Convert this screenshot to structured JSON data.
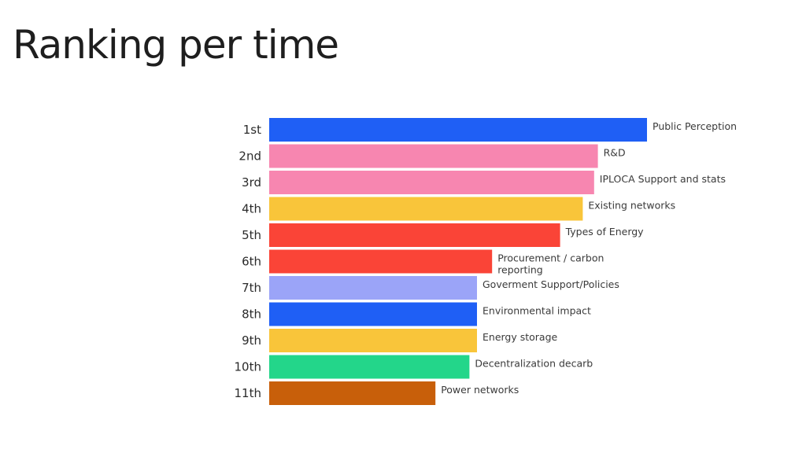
{
  "page": {
    "title": "Ranking per time"
  },
  "chart_data": {
    "type": "bar",
    "orientation": "horizontal",
    "title": "",
    "xlabel": "",
    "ylabel": "",
    "grid": false,
    "legend": "none",
    "xlim": [
      0,
      100
    ],
    "categories": [
      "1st",
      "2nd",
      "3rd",
      "4th",
      "5th",
      "6th",
      "7th",
      "8th",
      "9th",
      "10th",
      "11th"
    ],
    "values": [
      100,
      87,
      86,
      83,
      77,
      59,
      55,
      55,
      55,
      53,
      44
    ],
    "bar_labels": [
      [
        "Public Perception"
      ],
      [
        "R&D"
      ],
      [
        "IPLOCA Support and stats"
      ],
      [
        "Existing networks"
      ],
      [
        "Types of Energy"
      ],
      [
        "Procurement / carbon",
        "reporting"
      ],
      [
        "Goverment Support/Policies"
      ],
      [
        "Environmental impact"
      ],
      [
        "Energy storage"
      ],
      [
        "Decentralization decarb"
      ],
      [
        "Power networks"
      ]
    ],
    "colors": [
      "#1f5ff5",
      "#f786b0",
      "#f786b0",
      "#f9c53a",
      "#fa4437",
      "#fa4437",
      "#9ba4f8",
      "#1f5ff5",
      "#f9c53a",
      "#23d68a",
      "#c85f0a"
    ]
  }
}
